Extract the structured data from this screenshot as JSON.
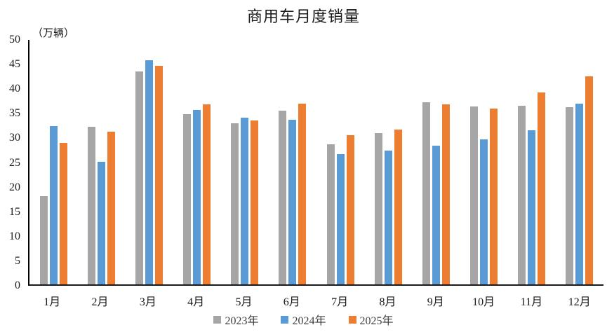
{
  "chart_data": {
    "type": "bar",
    "title": "商用车月度销量",
    "y_axis_unit_label": "（万辆）",
    "categories": [
      "1月",
      "2月",
      "3月",
      "4月",
      "5月",
      "6月",
      "7月",
      "8月",
      "9月",
      "10月",
      "11月",
      "12月"
    ],
    "series": [
      {
        "name": "2023年",
        "color": "#A6A6A6",
        "values": [
          18.0,
          32.3,
          43.5,
          34.8,
          33.0,
          35.5,
          28.6,
          30.9,
          37.2,
          36.4,
          36.6,
          36.3
        ]
      },
      {
        "name": "2024年",
        "color": "#5B9BD5",
        "values": [
          32.4,
          25.1,
          45.9,
          35.7,
          34.1,
          33.7,
          26.7,
          27.3,
          28.3,
          29.7,
          31.5,
          36.9
        ]
      },
      {
        "name": "2025年",
        "color": "#ED7D31",
        "values": [
          29.0,
          31.2,
          44.7,
          36.8,
          33.5,
          36.9,
          30.5,
          31.7,
          36.8,
          36.0,
          39.2,
          42.5
        ]
      }
    ],
    "ylim": [
      0,
      50
    ],
    "y_ticks": [
      0,
      5,
      10,
      15,
      20,
      25,
      30,
      35,
      40,
      45,
      50
    ],
    "xlabel": "",
    "ylabel": "（万辆）",
    "grid": "off",
    "legend_position": "bottom"
  }
}
